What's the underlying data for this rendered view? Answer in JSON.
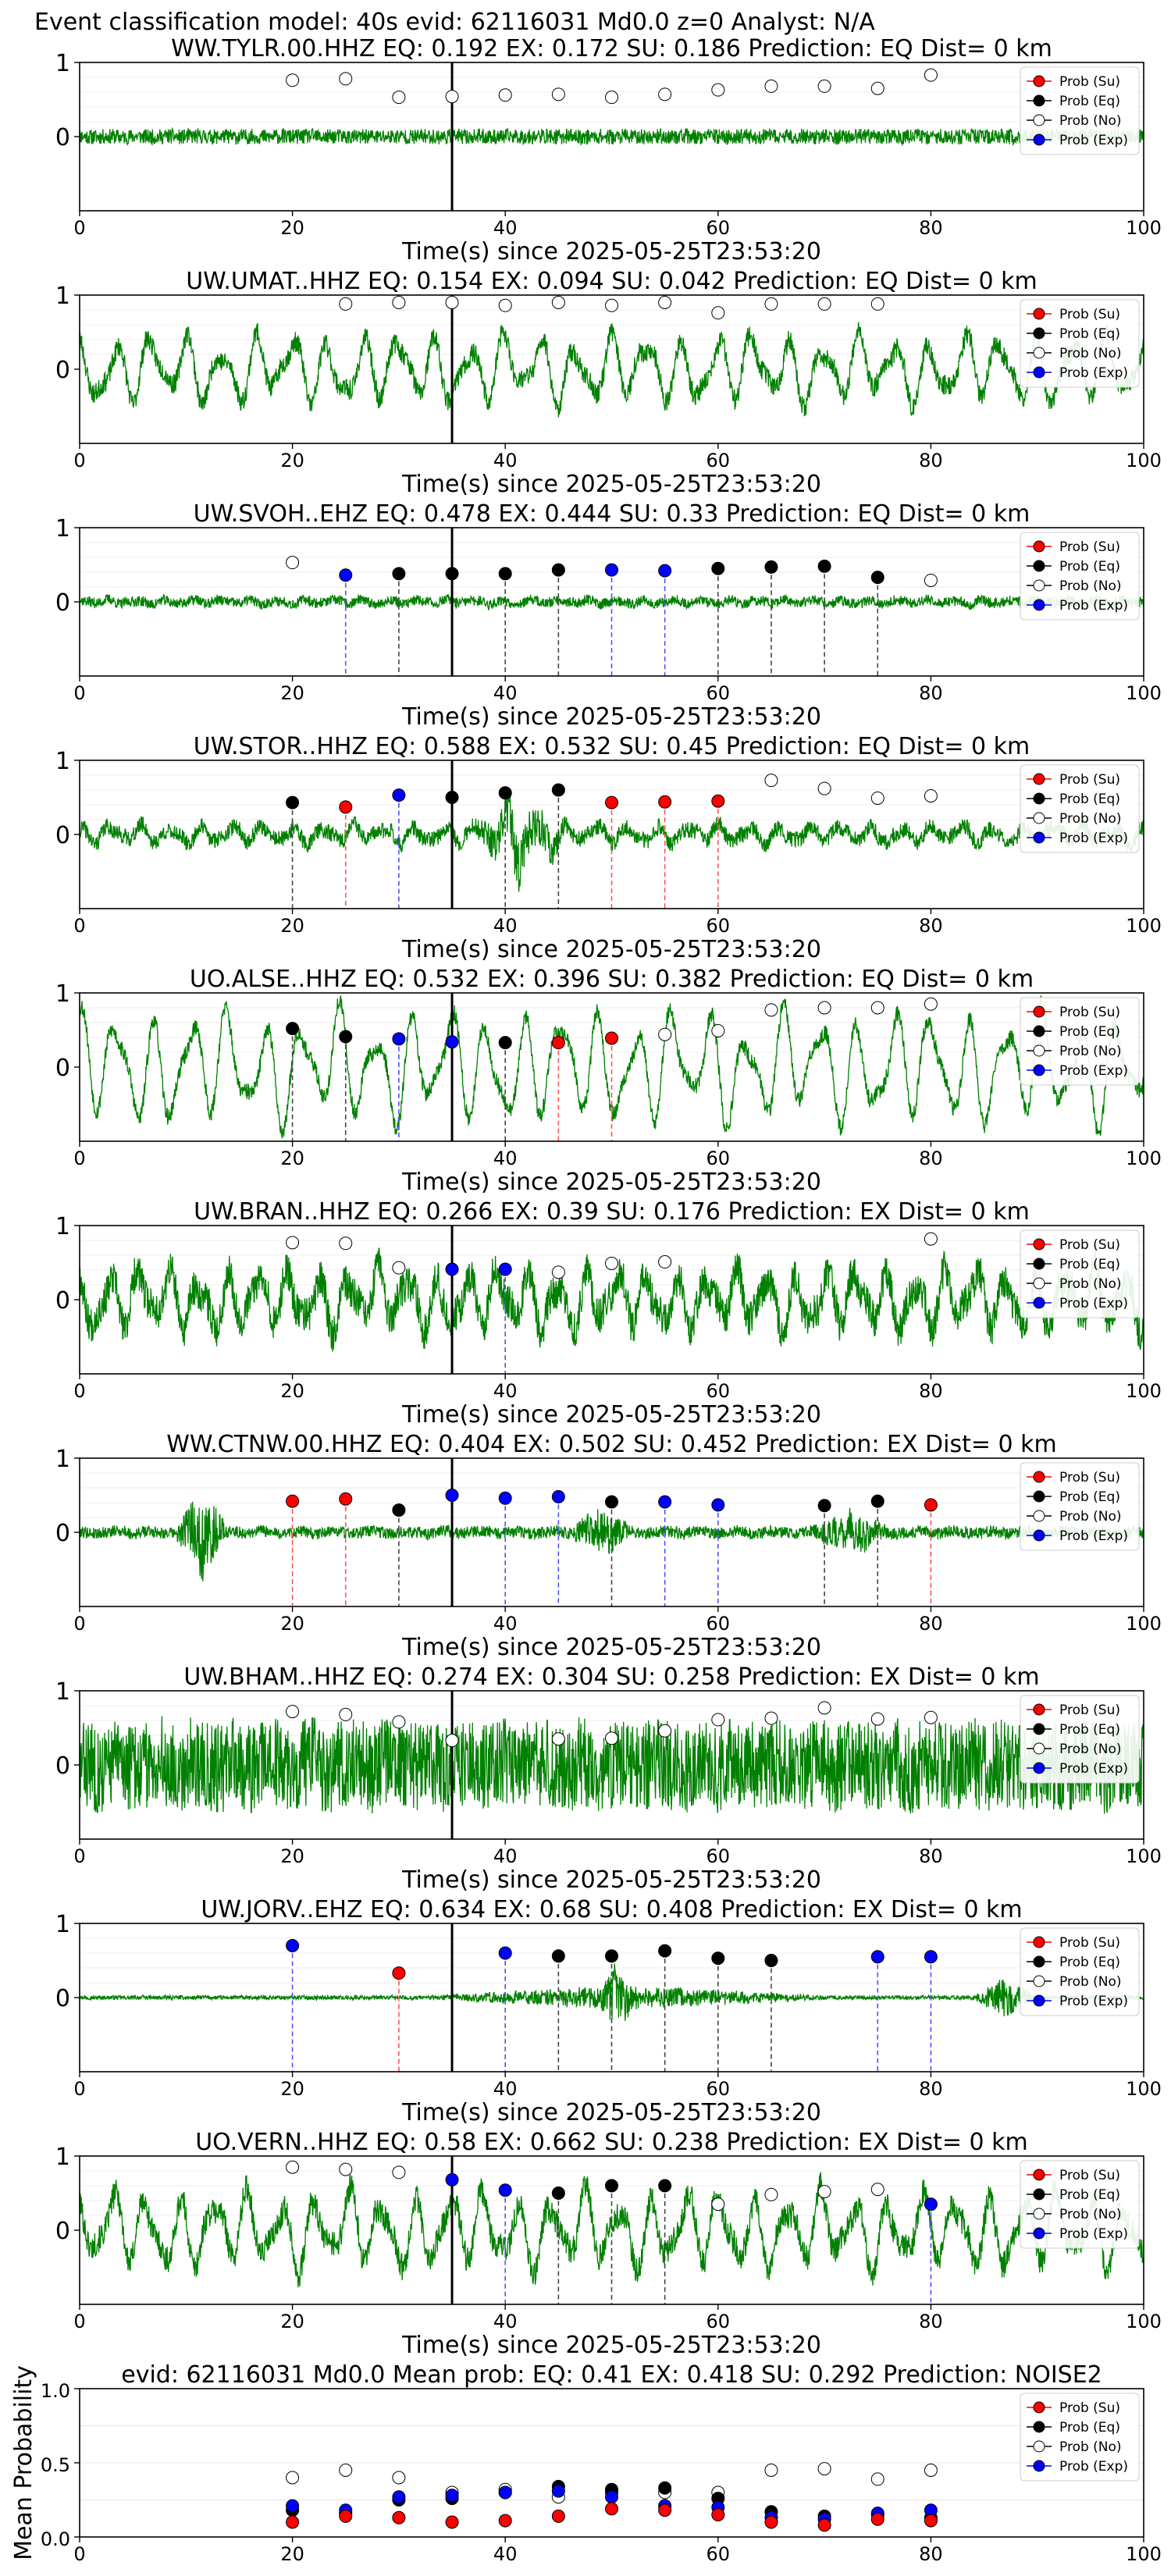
{
  "figure": {
    "suptitle": "Event classification model: 40s evid: 62116031 Md0.0 z=0 Analyst: N/A",
    "xlabel": "Time(s) since 2025-05-25T23:53:20",
    "xticks": [
      "0",
      "20",
      "40",
      "60",
      "80",
      "100"
    ],
    "yticks": [
      "1",
      "0"
    ],
    "legend": [
      "Prob (Su)",
      "Prob (Eq)",
      "Prob (No)",
      "Prob (Exp)"
    ],
    "pick_time": 35,
    "colors": {
      "su": "#ff0000",
      "eq": "#000000",
      "no": "#ffffff",
      "exp": "#0000ff",
      "trace": "#008000"
    }
  },
  "chart_data": [
    {
      "type": "scatter",
      "title": "WW.TYLR.00.HHZ   EQ: 0.192  EX: 0.172  SU: 0.186   Prediction: EQ    Dist= 0 km",
      "xlim": [
        0,
        100
      ],
      "ylim": [
        -1,
        1
      ],
      "trace": {
        "amplitude": 0.12,
        "slow": 0.05,
        "noise": 0.85,
        "seed": 11
      },
      "points": [
        {
          "x": 20,
          "y": 0.76,
          "c": "no"
        },
        {
          "x": 25,
          "y": 0.78,
          "c": "no"
        },
        {
          "x": 30,
          "y": 0.53,
          "c": "no"
        },
        {
          "x": 35,
          "y": 0.54,
          "c": "no"
        },
        {
          "x": 40,
          "y": 0.56,
          "c": "no"
        },
        {
          "x": 45,
          "y": 0.57,
          "c": "no"
        },
        {
          "x": 50,
          "y": 0.53,
          "c": "no"
        },
        {
          "x": 55,
          "y": 0.57,
          "c": "no"
        },
        {
          "x": 60,
          "y": 0.63,
          "c": "no"
        },
        {
          "x": 65,
          "y": 0.68,
          "c": "no"
        },
        {
          "x": 70,
          "y": 0.68,
          "c": "no"
        },
        {
          "x": 75,
          "y": 0.65,
          "c": "no"
        },
        {
          "x": 80,
          "y": 0.83,
          "c": "no"
        }
      ]
    },
    {
      "type": "scatter",
      "title": "UW.UMAT..HHZ   EQ: 0.154  EX: 0.094  SU: 0.042   Prediction: EQ    Dist= 0 km",
      "xlim": [
        0,
        100
      ],
      "ylim": [
        -1,
        1
      ],
      "trace": {
        "amplitude": 0.55,
        "slow": 0.75,
        "noise": 0.25,
        "seed": 23
      },
      "points": [
        {
          "x": 25,
          "y": 0.88,
          "c": "no"
        },
        {
          "x": 30,
          "y": 0.9,
          "c": "no"
        },
        {
          "x": 35,
          "y": 0.9,
          "c": "no"
        },
        {
          "x": 40,
          "y": 0.86,
          "c": "no"
        },
        {
          "x": 45,
          "y": 0.9,
          "c": "no"
        },
        {
          "x": 50,
          "y": 0.86,
          "c": "no"
        },
        {
          "x": 55,
          "y": 0.9,
          "c": "no"
        },
        {
          "x": 60,
          "y": 0.76,
          "c": "no"
        },
        {
          "x": 65,
          "y": 0.88,
          "c": "no"
        },
        {
          "x": 70,
          "y": 0.88,
          "c": "no"
        },
        {
          "x": 75,
          "y": 0.88,
          "c": "no"
        }
      ]
    },
    {
      "type": "scatter",
      "title": "UW.SVOH..EHZ   EQ: 0.478  EX: 0.444  SU: 0.33   Prediction: EQ    Dist= 0 km",
      "xlim": [
        0,
        100
      ],
      "ylim": [
        -1,
        1
      ],
      "trace": {
        "amplitude": 0.1,
        "slow": 0.3,
        "noise": 0.7,
        "seed": 37
      },
      "points": [
        {
          "x": 20,
          "y": 0.53,
          "c": "no"
        },
        {
          "x": 25,
          "y": 0.36,
          "c": "exp",
          "v": 1
        },
        {
          "x": 30,
          "y": 0.38,
          "c": "eq",
          "v": 1
        },
        {
          "x": 35,
          "y": 0.38,
          "c": "eq"
        },
        {
          "x": 40,
          "y": 0.38,
          "c": "eq",
          "v": 1
        },
        {
          "x": 45,
          "y": 0.43,
          "c": "eq",
          "v": 1
        },
        {
          "x": 50,
          "y": 0.43,
          "c": "exp",
          "v": 1
        },
        {
          "x": 55,
          "y": 0.42,
          "c": "exp",
          "v": 1
        },
        {
          "x": 60,
          "y": 0.45,
          "c": "eq",
          "v": 1
        },
        {
          "x": 65,
          "y": 0.47,
          "c": "eq",
          "v": 1
        },
        {
          "x": 70,
          "y": 0.48,
          "c": "eq",
          "v": 1
        },
        {
          "x": 75,
          "y": 0.33,
          "c": "eq",
          "v": 1
        },
        {
          "x": 80,
          "y": 0.29,
          "c": "no"
        }
      ]
    },
    {
      "type": "scatter",
      "title": "UW.STOR..HHZ   EQ: 0.588  EX: 0.532  SU: 0.45   Prediction: EQ    Dist= 0 km",
      "xlim": [
        0,
        100
      ],
      "ylim": [
        -1,
        1
      ],
      "trace": {
        "amplitude": 0.22,
        "slow": 0.5,
        "noise": 0.5,
        "seed": 41,
        "burst": [
          [
            37,
            46,
            3.5
          ]
        ]
      },
      "points": [
        {
          "x": 20,
          "y": 0.43,
          "c": "eq",
          "v": 1
        },
        {
          "x": 25,
          "y": 0.37,
          "c": "su",
          "v": 1
        },
        {
          "x": 30,
          "y": 0.53,
          "c": "exp",
          "v": 1
        },
        {
          "x": 35,
          "y": 0.5,
          "c": "eq"
        },
        {
          "x": 40,
          "y": 0.56,
          "c": "eq",
          "v": 1
        },
        {
          "x": 45,
          "y": 0.6,
          "c": "eq",
          "v": 1
        },
        {
          "x": 50,
          "y": 0.43,
          "c": "su",
          "v": 1
        },
        {
          "x": 55,
          "y": 0.44,
          "c": "su",
          "v": 1
        },
        {
          "x": 60,
          "y": 0.45,
          "c": "su",
          "v": 1
        },
        {
          "x": 65,
          "y": 0.73,
          "c": "no"
        },
        {
          "x": 70,
          "y": 0.62,
          "c": "no"
        },
        {
          "x": 75,
          "y": 0.49,
          "c": "no"
        },
        {
          "x": 80,
          "y": 0.52,
          "c": "no"
        }
      ]
    },
    {
      "type": "scatter",
      "title": "UO.ALSE..HHZ   EQ: 0.532  EX: 0.396  SU: 0.382   Prediction: EQ    Dist= 0 km",
      "xlim": [
        0,
        100
      ],
      "ylim": [
        -1,
        1
      ],
      "trace": {
        "amplitude": 0.75,
        "slow": 0.9,
        "noise": 0.15,
        "seed": 53
      },
      "points": [
        {
          "x": 20,
          "y": 0.52,
          "c": "eq",
          "v": 1
        },
        {
          "x": 25,
          "y": 0.41,
          "c": "eq",
          "v": 1
        },
        {
          "x": 30,
          "y": 0.38,
          "c": "exp",
          "v": 1
        },
        {
          "x": 35,
          "y": 0.34,
          "c": "exp"
        },
        {
          "x": 40,
          "y": 0.33,
          "c": "eq",
          "v": 1
        },
        {
          "x": 45,
          "y": 0.33,
          "c": "su",
          "v": 1
        },
        {
          "x": 50,
          "y": 0.39,
          "c": "su",
          "v": 1
        },
        {
          "x": 55,
          "y": 0.44,
          "c": "no"
        },
        {
          "x": 60,
          "y": 0.49,
          "c": "no"
        },
        {
          "x": 65,
          "y": 0.77,
          "c": "no"
        },
        {
          "x": 70,
          "y": 0.8,
          "c": "no"
        },
        {
          "x": 75,
          "y": 0.8,
          "c": "no"
        },
        {
          "x": 80,
          "y": 0.85,
          "c": "no"
        }
      ]
    },
    {
      "type": "scatter",
      "title": "UW.BRAN..HHZ   EQ: 0.266  EX: 0.39  SU: 0.176   Prediction: EX    Dist= 0 km",
      "xlim": [
        0,
        100
      ],
      "ylim": [
        -1,
        1
      ],
      "trace": {
        "amplitude": 0.6,
        "slow": 0.6,
        "noise": 0.4,
        "seed": 67
      },
      "points": [
        {
          "x": 20,
          "y": 0.77,
          "c": "no"
        },
        {
          "x": 25,
          "y": 0.76,
          "c": "no"
        },
        {
          "x": 30,
          "y": 0.43,
          "c": "no"
        },
        {
          "x": 35,
          "y": 0.41,
          "c": "exp"
        },
        {
          "x": 40,
          "y": 0.41,
          "c": "exp",
          "v": 1
        },
        {
          "x": 45,
          "y": 0.37,
          "c": "no"
        },
        {
          "x": 50,
          "y": 0.49,
          "c": "no"
        },
        {
          "x": 55,
          "y": 0.51,
          "c": "no"
        },
        {
          "x": 80,
          "y": 0.82,
          "c": "no"
        }
      ]
    },
    {
      "type": "scatter",
      "title": "WW.CTNW.00.HHZ   EQ: 0.404  EX: 0.502  SU: 0.452   Prediction: EX    Dist= 0 km",
      "xlim": [
        0,
        100
      ],
      "ylim": [
        -1,
        1
      ],
      "trace": {
        "amplitude": 0.1,
        "slow": 0.2,
        "noise": 0.8,
        "seed": 79,
        "burst": [
          [
            9,
            14,
            7
          ],
          [
            46,
            52,
            4
          ],
          [
            69,
            76,
            4
          ]
        ]
      },
      "points": [
        {
          "x": 20,
          "y": 0.42,
          "c": "su",
          "v": 1
        },
        {
          "x": 25,
          "y": 0.45,
          "c": "su",
          "v": 1
        },
        {
          "x": 30,
          "y": 0.3,
          "c": "eq",
          "v": 1
        },
        {
          "x": 35,
          "y": 0.5,
          "c": "exp"
        },
        {
          "x": 40,
          "y": 0.46,
          "c": "exp",
          "v": 1
        },
        {
          "x": 45,
          "y": 0.48,
          "c": "exp",
          "v": 1
        },
        {
          "x": 50,
          "y": 0.41,
          "c": "eq",
          "v": 1
        },
        {
          "x": 55,
          "y": 0.41,
          "c": "exp",
          "v": 1
        },
        {
          "x": 60,
          "y": 0.37,
          "c": "exp",
          "v": 1
        },
        {
          "x": 70,
          "y": 0.36,
          "c": "eq",
          "v": 1
        },
        {
          "x": 75,
          "y": 0.42,
          "c": "eq",
          "v": 1
        },
        {
          "x": 80,
          "y": 0.37,
          "c": "su",
          "v": 1
        }
      ]
    },
    {
      "type": "scatter",
      "title": "UW.BHAM..HHZ   EQ: 0.274  EX: 0.304  SU: 0.258   Prediction: EX    Dist= 0 km",
      "xlim": [
        0,
        100
      ],
      "ylim": [
        -1,
        1
      ],
      "trace": {
        "amplitude": 0.6,
        "slow": 0.1,
        "noise": 1.0,
        "seed": 83
      },
      "points": [
        {
          "x": 20,
          "y": 0.72,
          "c": "no"
        },
        {
          "x": 25,
          "y": 0.68,
          "c": "no"
        },
        {
          "x": 30,
          "y": 0.58,
          "c": "no"
        },
        {
          "x": 35,
          "y": 0.33,
          "c": "no"
        },
        {
          "x": 45,
          "y": 0.35,
          "c": "no"
        },
        {
          "x": 50,
          "y": 0.36,
          "c": "no"
        },
        {
          "x": 55,
          "y": 0.46,
          "c": "no"
        },
        {
          "x": 60,
          "y": 0.61,
          "c": "no"
        },
        {
          "x": 65,
          "y": 0.63,
          "c": "no"
        },
        {
          "x": 70,
          "y": 0.77,
          "c": "no"
        },
        {
          "x": 75,
          "y": 0.62,
          "c": "no"
        },
        {
          "x": 80,
          "y": 0.64,
          "c": "no"
        }
      ]
    },
    {
      "type": "scatter",
      "title": "UW.JORV..EHZ   EQ: 0.634  EX: 0.68  SU: 0.408   Prediction: EX    Dist= 0 km",
      "xlim": [
        0,
        100
      ],
      "ylim": [
        -1,
        1
      ],
      "trace": {
        "amplitude": 0.03,
        "slow": 0.1,
        "noise": 0.9,
        "seed": 97,
        "burst": [
          [
            33,
            70,
            6
          ],
          [
            49,
            52,
            14
          ],
          [
            84,
            90,
            10
          ]
        ]
      },
      "points": [
        {
          "x": 20,
          "y": 0.7,
          "c": "exp",
          "v": 1
        },
        {
          "x": 30,
          "y": 0.33,
          "c": "su",
          "v": 1
        },
        {
          "x": 40,
          "y": 0.6,
          "c": "exp",
          "v": 1
        },
        {
          "x": 45,
          "y": 0.56,
          "c": "eq",
          "v": 1
        },
        {
          "x": 50,
          "y": 0.56,
          "c": "eq",
          "v": 1
        },
        {
          "x": 55,
          "y": 0.63,
          "c": "eq",
          "v": 1
        },
        {
          "x": 60,
          "y": 0.53,
          "c": "eq",
          "v": 1
        },
        {
          "x": 65,
          "y": 0.5,
          "c": "eq",
          "v": 1
        },
        {
          "x": 75,
          "y": 0.55,
          "c": "exp",
          "v": 1
        },
        {
          "x": 80,
          "y": 0.55,
          "c": "exp",
          "v": 1
        }
      ]
    },
    {
      "type": "scatter",
      "title": "UO.VERN..HHZ   EQ: 0.58  EX: 0.662  SU: 0.238   Prediction: EX    Dist= 0 km",
      "xlim": [
        0,
        100
      ],
      "ylim": [
        -1,
        1
      ],
      "trace": {
        "amplitude": 0.6,
        "slow": 0.75,
        "noise": 0.3,
        "seed": 101
      },
      "points": [
        {
          "x": 20,
          "y": 0.85,
          "c": "no"
        },
        {
          "x": 25,
          "y": 0.82,
          "c": "no"
        },
        {
          "x": 30,
          "y": 0.78,
          "c": "no"
        },
        {
          "x": 35,
          "y": 0.68,
          "c": "exp"
        },
        {
          "x": 40,
          "y": 0.54,
          "c": "exp",
          "v": 1
        },
        {
          "x": 45,
          "y": 0.5,
          "c": "eq",
          "v": 1
        },
        {
          "x": 50,
          "y": 0.6,
          "c": "eq",
          "v": 1
        },
        {
          "x": 55,
          "y": 0.6,
          "c": "eq",
          "v": 1
        },
        {
          "x": 60,
          "y": 0.35,
          "c": "no"
        },
        {
          "x": 65,
          "y": 0.48,
          "c": "no"
        },
        {
          "x": 70,
          "y": 0.52,
          "c": "no"
        },
        {
          "x": 75,
          "y": 0.55,
          "c": "no"
        },
        {
          "x": 80,
          "y": 0.35,
          "c": "exp",
          "v": 1
        }
      ]
    },
    {
      "type": "scatter",
      "title": "evid: 62116031  Md0.0   Mean prob:   EQ: 0.41  EX: 0.418  SU: 0.292   Prediction: NOISE2",
      "ylabel": "Mean Probability",
      "xlim": [
        0,
        100
      ],
      "ylim": [
        0,
        1
      ],
      "yticks": [
        "0.0",
        "0.5",
        "1.0"
      ],
      "series": [
        {
          "c": "no",
          "x": [
            20,
            25,
            30,
            35,
            40,
            45,
            50,
            55,
            60,
            65,
            70,
            75,
            80
          ],
          "y": [
            0.4,
            0.45,
            0.4,
            0.3,
            0.32,
            0.27,
            0.3,
            0.3,
            0.3,
            0.45,
            0.46,
            0.39,
            0.45
          ]
        },
        {
          "c": "eq",
          "x": [
            20,
            25,
            30,
            35,
            40,
            45,
            50,
            55,
            60,
            65,
            70,
            75,
            80
          ],
          "y": [
            0.18,
            0.16,
            0.25,
            0.26,
            0.3,
            0.34,
            0.32,
            0.33,
            0.26,
            0.17,
            0.14,
            0.15,
            0.13
          ]
        },
        {
          "c": "exp",
          "x": [
            20,
            25,
            30,
            35,
            40,
            45,
            50,
            55,
            60,
            65,
            70,
            75,
            80
          ],
          "y": [
            0.21,
            0.18,
            0.27,
            0.28,
            0.3,
            0.31,
            0.27,
            0.21,
            0.2,
            0.13,
            0.12,
            0.16,
            0.18
          ]
        },
        {
          "c": "su",
          "x": [
            20,
            25,
            30,
            35,
            40,
            45,
            50,
            55,
            60,
            65,
            70,
            75,
            80
          ],
          "y": [
            0.1,
            0.14,
            0.13,
            0.1,
            0.11,
            0.14,
            0.19,
            0.18,
            0.15,
            0.1,
            0.08,
            0.12,
            0.11
          ]
        }
      ]
    }
  ]
}
